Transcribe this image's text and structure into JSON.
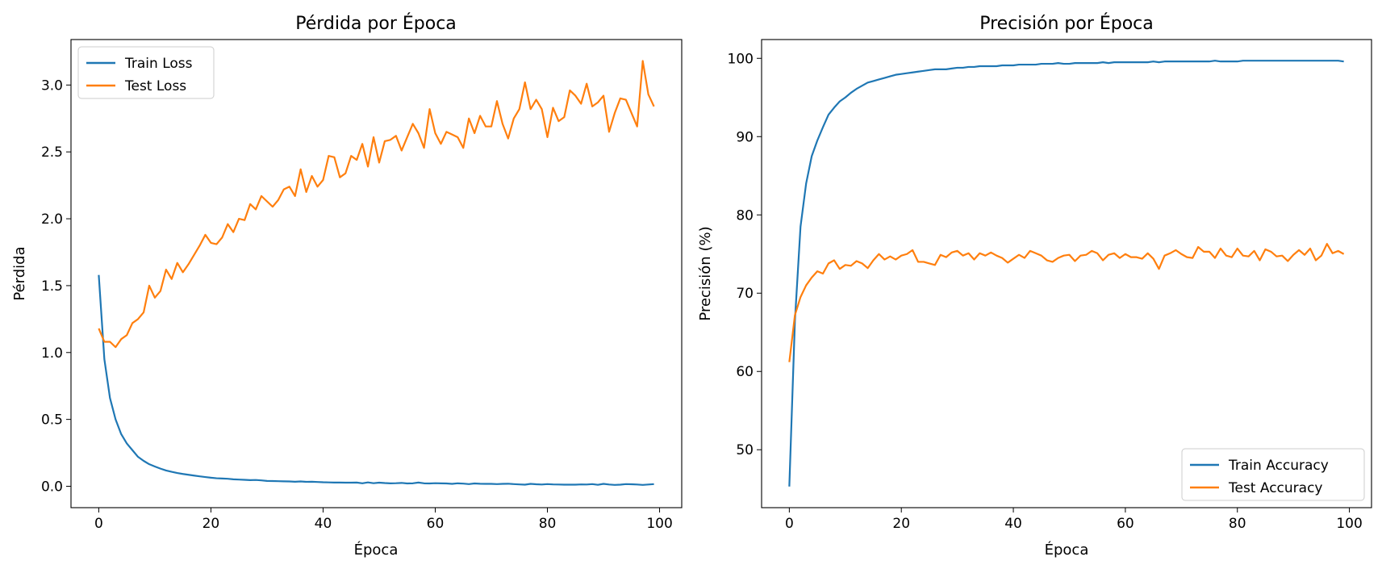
{
  "colors": {
    "train": "#1f77b4",
    "test": "#ff7f0e"
  },
  "chart_data": [
    {
      "type": "line",
      "title": "Pérdida por Época",
      "xlabel": "Época",
      "ylabel": "Pérdida",
      "xlim": [
        -4.95,
        103.95
      ],
      "ylim": [
        -0.16,
        3.34
      ],
      "xticks": [
        0,
        20,
        40,
        60,
        80,
        100
      ],
      "xtick_labels": [
        "0",
        "20",
        "40",
        "60",
        "80",
        "100"
      ],
      "yticks": [
        0.0,
        0.5,
        1.0,
        1.5,
        2.0,
        2.5,
        3.0
      ],
      "ytick_labels": [
        "0.0",
        "0.5",
        "1.0",
        "1.5",
        "2.0",
        "2.5",
        "3.0"
      ],
      "legend_position": "top-left",
      "x": [
        0,
        1,
        2,
        3,
        4,
        5,
        6,
        7,
        8,
        9,
        10,
        11,
        12,
        13,
        14,
        15,
        16,
        17,
        18,
        19,
        20,
        21,
        22,
        23,
        24,
        25,
        26,
        27,
        28,
        29,
        30,
        31,
        32,
        33,
        34,
        35,
        36,
        37,
        38,
        39,
        40,
        41,
        42,
        43,
        44,
        45,
        46,
        47,
        48,
        49,
        50,
        51,
        52,
        53,
        54,
        55,
        56,
        57,
        58,
        59,
        60,
        61,
        62,
        63,
        64,
        65,
        66,
        67,
        68,
        69,
        70,
        71,
        72,
        73,
        74,
        75,
        76,
        77,
        78,
        79,
        80,
        81,
        82,
        83,
        84,
        85,
        86,
        87,
        88,
        89,
        90,
        91,
        92,
        93,
        94,
        95,
        96,
        97,
        98,
        99
      ],
      "series": [
        {
          "name": "Train Loss",
          "color_key": "train",
          "values": [
            1.58,
            0.95,
            0.66,
            0.5,
            0.39,
            0.32,
            0.27,
            0.22,
            0.19,
            0.165,
            0.148,
            0.132,
            0.118,
            0.108,
            0.099,
            0.092,
            0.086,
            0.08,
            0.074,
            0.069,
            0.064,
            0.06,
            0.058,
            0.056,
            0.052,
            0.05,
            0.048,
            0.046,
            0.047,
            0.044,
            0.04,
            0.039,
            0.038,
            0.037,
            0.036,
            0.034,
            0.036,
            0.033,
            0.034,
            0.032,
            0.03,
            0.029,
            0.028,
            0.028,
            0.027,
            0.027,
            0.028,
            0.022,
            0.029,
            0.023,
            0.027,
            0.024,
            0.022,
            0.023,
            0.025,
            0.021,
            0.022,
            0.028,
            0.022,
            0.021,
            0.023,
            0.022,
            0.021,
            0.018,
            0.022,
            0.02,
            0.016,
            0.021,
            0.019,
            0.018,
            0.018,
            0.016,
            0.018,
            0.019,
            0.016,
            0.014,
            0.012,
            0.018,
            0.015,
            0.013,
            0.016,
            0.014,
            0.013,
            0.012,
            0.012,
            0.012,
            0.014,
            0.013,
            0.016,
            0.011,
            0.018,
            0.013,
            0.01,
            0.012,
            0.016,
            0.015,
            0.013,
            0.01,
            0.013,
            0.016
          ]
        },
        {
          "name": "Test Loss",
          "color_key": "test",
          "values": [
            1.18,
            1.08,
            1.08,
            1.04,
            1.1,
            1.13,
            1.22,
            1.25,
            1.3,
            1.5,
            1.41,
            1.46,
            1.62,
            1.55,
            1.67,
            1.6,
            1.66,
            1.73,
            1.8,
            1.88,
            1.82,
            1.81,
            1.86,
            1.96,
            1.9,
            2.0,
            1.99,
            2.11,
            2.07,
            2.17,
            2.13,
            2.09,
            2.14,
            2.22,
            2.24,
            2.17,
            2.37,
            2.2,
            2.32,
            2.24,
            2.29,
            2.47,
            2.46,
            2.31,
            2.34,
            2.47,
            2.44,
            2.56,
            2.39,
            2.61,
            2.42,
            2.58,
            2.59,
            2.62,
            2.51,
            2.61,
            2.71,
            2.64,
            2.53,
            2.82,
            2.64,
            2.56,
            2.65,
            2.63,
            2.61,
            2.53,
            2.75,
            2.64,
            2.77,
            2.69,
            2.69,
            2.88,
            2.71,
            2.6,
            2.75,
            2.82,
            3.02,
            2.82,
            2.89,
            2.82,
            2.61,
            2.83,
            2.73,
            2.76,
            2.96,
            2.92,
            2.86,
            3.01,
            2.84,
            2.87,
            2.92,
            2.65,
            2.79,
            2.9,
            2.89,
            2.79,
            2.69,
            3.18,
            2.93,
            2.84
          ]
        }
      ]
    },
    {
      "type": "line",
      "title": "Precisión por Época",
      "xlabel": "Época",
      "ylabel": "Precisión (%)",
      "xlim": [
        -4.95,
        103.95
      ],
      "ylim": [
        42.6,
        102.4
      ],
      "xticks": [
        0,
        20,
        40,
        60,
        80,
        100
      ],
      "xtick_labels": [
        "0",
        "20",
        "40",
        "60",
        "80",
        "100"
      ],
      "yticks": [
        50,
        60,
        70,
        80,
        90,
        100
      ],
      "ytick_labels": [
        "50",
        "60",
        "70",
        "80",
        "90",
        "100"
      ],
      "legend_position": "bottom-right",
      "x": [
        0,
        1,
        2,
        3,
        4,
        5,
        6,
        7,
        8,
        9,
        10,
        11,
        12,
        13,
        14,
        15,
        16,
        17,
        18,
        19,
        20,
        21,
        22,
        23,
        24,
        25,
        26,
        27,
        28,
        29,
        30,
        31,
        32,
        33,
        34,
        35,
        36,
        37,
        38,
        39,
        40,
        41,
        42,
        43,
        44,
        45,
        46,
        47,
        48,
        49,
        50,
        51,
        52,
        53,
        54,
        55,
        56,
        57,
        58,
        59,
        60,
        61,
        62,
        63,
        64,
        65,
        66,
        67,
        68,
        69,
        70,
        71,
        72,
        73,
        74,
        75,
        76,
        77,
        78,
        79,
        80,
        81,
        82,
        83,
        84,
        85,
        86,
        87,
        88,
        89,
        90,
        91,
        92,
        93,
        94,
        95,
        96,
        97,
        98,
        99
      ],
      "series": [
        {
          "name": "Train Accuracy",
          "color_key": "train",
          "values": [
            45.3,
            66.5,
            78.5,
            84.0,
            87.5,
            89.5,
            91.2,
            92.8,
            93.7,
            94.5,
            95.0,
            95.6,
            96.1,
            96.5,
            96.9,
            97.1,
            97.3,
            97.5,
            97.7,
            97.9,
            98.0,
            98.1,
            98.2,
            98.3,
            98.4,
            98.5,
            98.6,
            98.6,
            98.6,
            98.7,
            98.8,
            98.8,
            98.9,
            98.9,
            99.0,
            99.0,
            99.0,
            99.0,
            99.1,
            99.1,
            99.1,
            99.2,
            99.2,
            99.2,
            99.2,
            99.3,
            99.3,
            99.3,
            99.4,
            99.3,
            99.3,
            99.4,
            99.4,
            99.4,
            99.4,
            99.4,
            99.5,
            99.4,
            99.5,
            99.5,
            99.5,
            99.5,
            99.5,
            99.5,
            99.5,
            99.6,
            99.5,
            99.6,
            99.6,
            99.6,
            99.6,
            99.6,
            99.6,
            99.6,
            99.6,
            99.6,
            99.7,
            99.6,
            99.6,
            99.6,
            99.6,
            99.7,
            99.7,
            99.7,
            99.7,
            99.7,
            99.7,
            99.7,
            99.7,
            99.7,
            99.7,
            99.7,
            99.7,
            99.7,
            99.7,
            99.7,
            99.7,
            99.7,
            99.7,
            99.6
          ]
        },
        {
          "name": "Test Accuracy",
          "color_key": "test",
          "values": [
            61.2,
            67.2,
            69.5,
            71.0,
            72.0,
            72.8,
            72.5,
            73.8,
            74.2,
            73.1,
            73.6,
            73.5,
            74.1,
            73.8,
            73.2,
            74.2,
            75.0,
            74.3,
            74.7,
            74.3,
            74.8,
            75.0,
            75.5,
            74.0,
            74.0,
            73.8,
            73.6,
            74.9,
            74.6,
            75.2,
            75.4,
            74.8,
            75.1,
            74.3,
            75.1,
            74.8,
            75.2,
            74.8,
            74.5,
            73.9,
            74.4,
            74.9,
            74.5,
            75.4,
            75.1,
            74.8,
            74.2,
            74.0,
            74.5,
            74.8,
            74.9,
            74.1,
            74.8,
            74.9,
            75.4,
            75.1,
            74.2,
            74.9,
            75.1,
            74.5,
            75.0,
            74.6,
            74.6,
            74.4,
            75.1,
            74.4,
            73.1,
            74.8,
            75.1,
            75.5,
            75.0,
            74.6,
            74.5,
            75.9,
            75.3,
            75.3,
            74.5,
            75.7,
            74.8,
            74.6,
            75.7,
            74.8,
            74.7,
            75.4,
            74.2,
            75.6,
            75.3,
            74.7,
            74.8,
            74.1,
            74.9,
            75.5,
            74.9,
            75.7,
            74.2,
            74.8,
            76.3,
            75.1,
            75.4,
            75.0
          ]
        }
      ]
    }
  ]
}
